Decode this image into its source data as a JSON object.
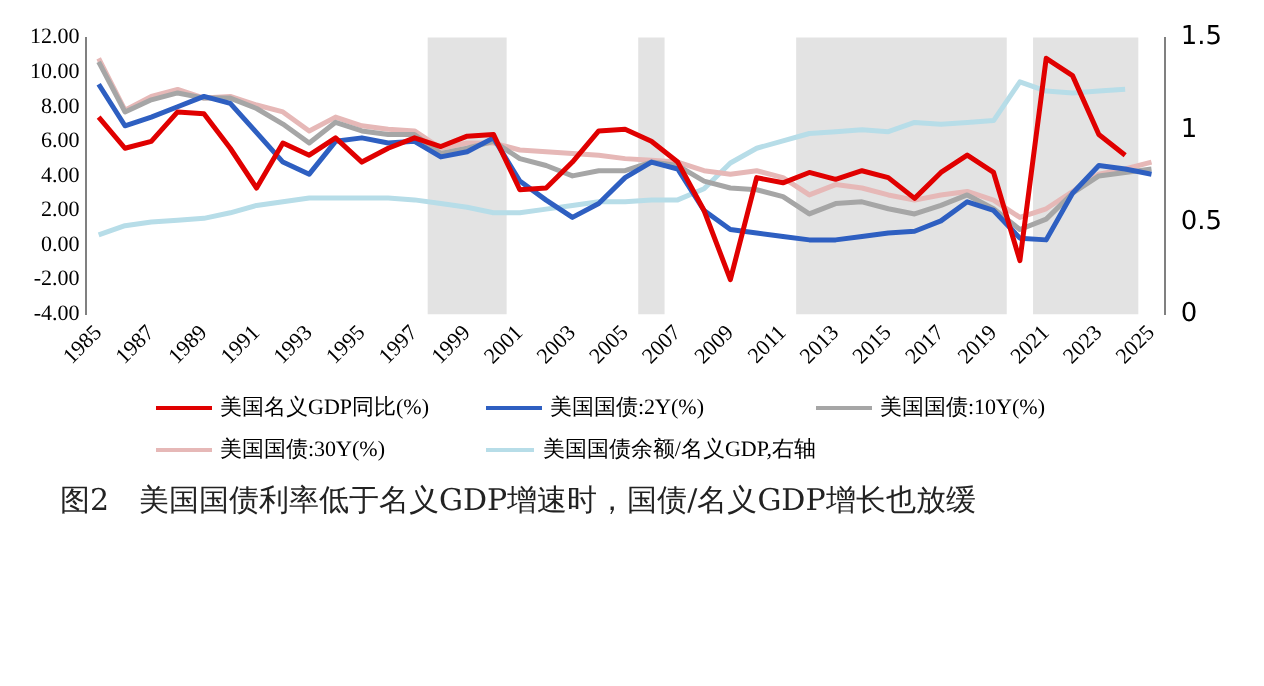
{
  "chart_data": {
    "type": "line",
    "title": "图2　美国国债利率低于名义GDP增速时，国债/名义GDP增长也放缓",
    "x": [
      1985,
      1986,
      1987,
      1988,
      1989,
      1990,
      1991,
      1992,
      1993,
      1994,
      1995,
      1996,
      1997,
      1998,
      1999,
      2000,
      2001,
      2002,
      2003,
      2004,
      2005,
      2006,
      2007,
      2008,
      2009,
      2010,
      2011,
      2012,
      2013,
      2014,
      2015,
      2016,
      2017,
      2018,
      2019,
      2020,
      2021,
      2022,
      2023,
      2024,
      2025
    ],
    "series": [
      {
        "name": "美国名义GDP同比(%)",
        "color": "#e00000",
        "values": [
          7.4,
          5.6,
          6.0,
          7.7,
          7.6,
          5.6,
          3.3,
          5.9,
          5.2,
          6.2,
          4.8,
          5.6,
          6.2,
          5.7,
          6.3,
          6.4,
          3.2,
          3.3,
          4.8,
          6.6,
          6.7,
          6.0,
          4.8,
          2.0,
          -2.0,
          3.9,
          3.6,
          4.2,
          3.8,
          4.3,
          3.9,
          2.7,
          4.2,
          5.2,
          4.2,
          -0.9,
          10.8,
          9.8,
          6.4,
          5.2,
          null
        ]
      },
      {
        "name": "美国国债:2Y(%)",
        "color": "#2e5fc1",
        "values": [
          9.3,
          6.9,
          7.4,
          8.0,
          8.6,
          8.2,
          6.5,
          4.8,
          4.1,
          6.0,
          6.2,
          5.9,
          6.0,
          5.1,
          5.4,
          6.2,
          3.7,
          2.6,
          1.6,
          2.4,
          3.9,
          4.8,
          4.4,
          2.0,
          0.9,
          0.7,
          0.5,
          0.3,
          0.3,
          0.5,
          0.7,
          0.8,
          1.4,
          2.5,
          2.0,
          0.4,
          0.3,
          3.0,
          4.6,
          4.4,
          4.1
        ]
      },
      {
        "name": "美国国债:10Y(%)",
        "color": "#a6a6a6",
        "values": [
          10.6,
          7.7,
          8.4,
          8.8,
          8.5,
          8.5,
          7.9,
          7.0,
          5.9,
          7.1,
          6.6,
          6.4,
          6.4,
          5.3,
          5.6,
          6.0,
          5.0,
          4.6,
          4.0,
          4.3,
          4.3,
          4.8,
          4.6,
          3.7,
          3.3,
          3.2,
          2.8,
          1.8,
          2.4,
          2.5,
          2.1,
          1.8,
          2.3,
          2.9,
          2.1,
          0.9,
          1.5,
          3.0,
          4.0,
          4.2,
          4.4
        ]
      },
      {
        "name": "美国国债:30Y(%)",
        "color": "#e6b8b7",
        "values": [
          10.8,
          7.8,
          8.6,
          9.0,
          8.5,
          8.6,
          8.1,
          7.7,
          6.6,
          7.4,
          6.9,
          6.7,
          6.6,
          5.6,
          5.9,
          5.9,
          5.5,
          5.4,
          5.3,
          5.2,
          5.0,
          4.9,
          4.8,
          4.3,
          4.1,
          4.3,
          3.9,
          2.9,
          3.5,
          3.3,
          2.9,
          2.6,
          2.9,
          3.1,
          2.6,
          1.6,
          2.1,
          3.1,
          4.1,
          4.4,
          4.8
        ]
      },
      {
        "name": "美国国债余额/名义GDP,右轴",
        "color": "#b7dde8",
        "axis": "y2",
        "values": [
          0.43,
          0.48,
          0.5,
          0.51,
          0.52,
          0.55,
          0.59,
          0.61,
          0.63,
          0.63,
          0.63,
          0.63,
          0.62,
          0.6,
          0.58,
          0.55,
          0.55,
          0.57,
          0.59,
          0.61,
          0.61,
          0.62,
          0.62,
          0.68,
          0.82,
          0.9,
          0.94,
          0.98,
          0.99,
          1.0,
          0.99,
          1.04,
          1.03,
          1.04,
          1.05,
          1.26,
          1.21,
          1.2,
          1.21,
          1.22,
          null
        ]
      }
    ],
    "xlim": [
      1984.5,
      2025.5
    ],
    "xticks": [
      1985,
      1987,
      1989,
      1991,
      1993,
      1995,
      1997,
      1999,
      2001,
      2003,
      2005,
      2007,
      2009,
      2011,
      2013,
      2015,
      2017,
      2019,
      2021,
      2023,
      2025
    ],
    "ylim": [
      -4,
      12
    ],
    "yticks": [
      {
        "value": -4,
        "label": "-4.00"
      },
      {
        "value": -2,
        "label": "-2.00"
      },
      {
        "value": 0,
        "label": "0.00"
      },
      {
        "value": 2,
        "label": "2.00"
      },
      {
        "value": 4,
        "label": "4.00"
      },
      {
        "value": 6,
        "label": "6.00"
      },
      {
        "value": 8,
        "label": "8.00"
      },
      {
        "value": 10,
        "label": "10.00"
      },
      {
        "value": 12,
        "label": "12.00"
      }
    ],
    "y2lim": [
      0,
      1.5
    ],
    "y2ticks": [
      0,
      0.5,
      1,
      1.5
    ],
    "bands": [
      {
        "axis": "x",
        "from": 1997.5,
        "to": 2000.5,
        "color": "#e3e3e3"
      },
      {
        "axis": "x",
        "from": 2005.5,
        "to": 2006.5,
        "color": "#e3e3e3"
      },
      {
        "axis": "x",
        "from": 2011.5,
        "to": 2019.5,
        "color": "#e3e3e3"
      },
      {
        "axis": "x",
        "from": 2020.5,
        "to": 2024.5,
        "color": "#e3e3e3"
      }
    ],
    "grid": false,
    "legend": "bottom",
    "marker": "none",
    "line_style": "solid"
  }
}
